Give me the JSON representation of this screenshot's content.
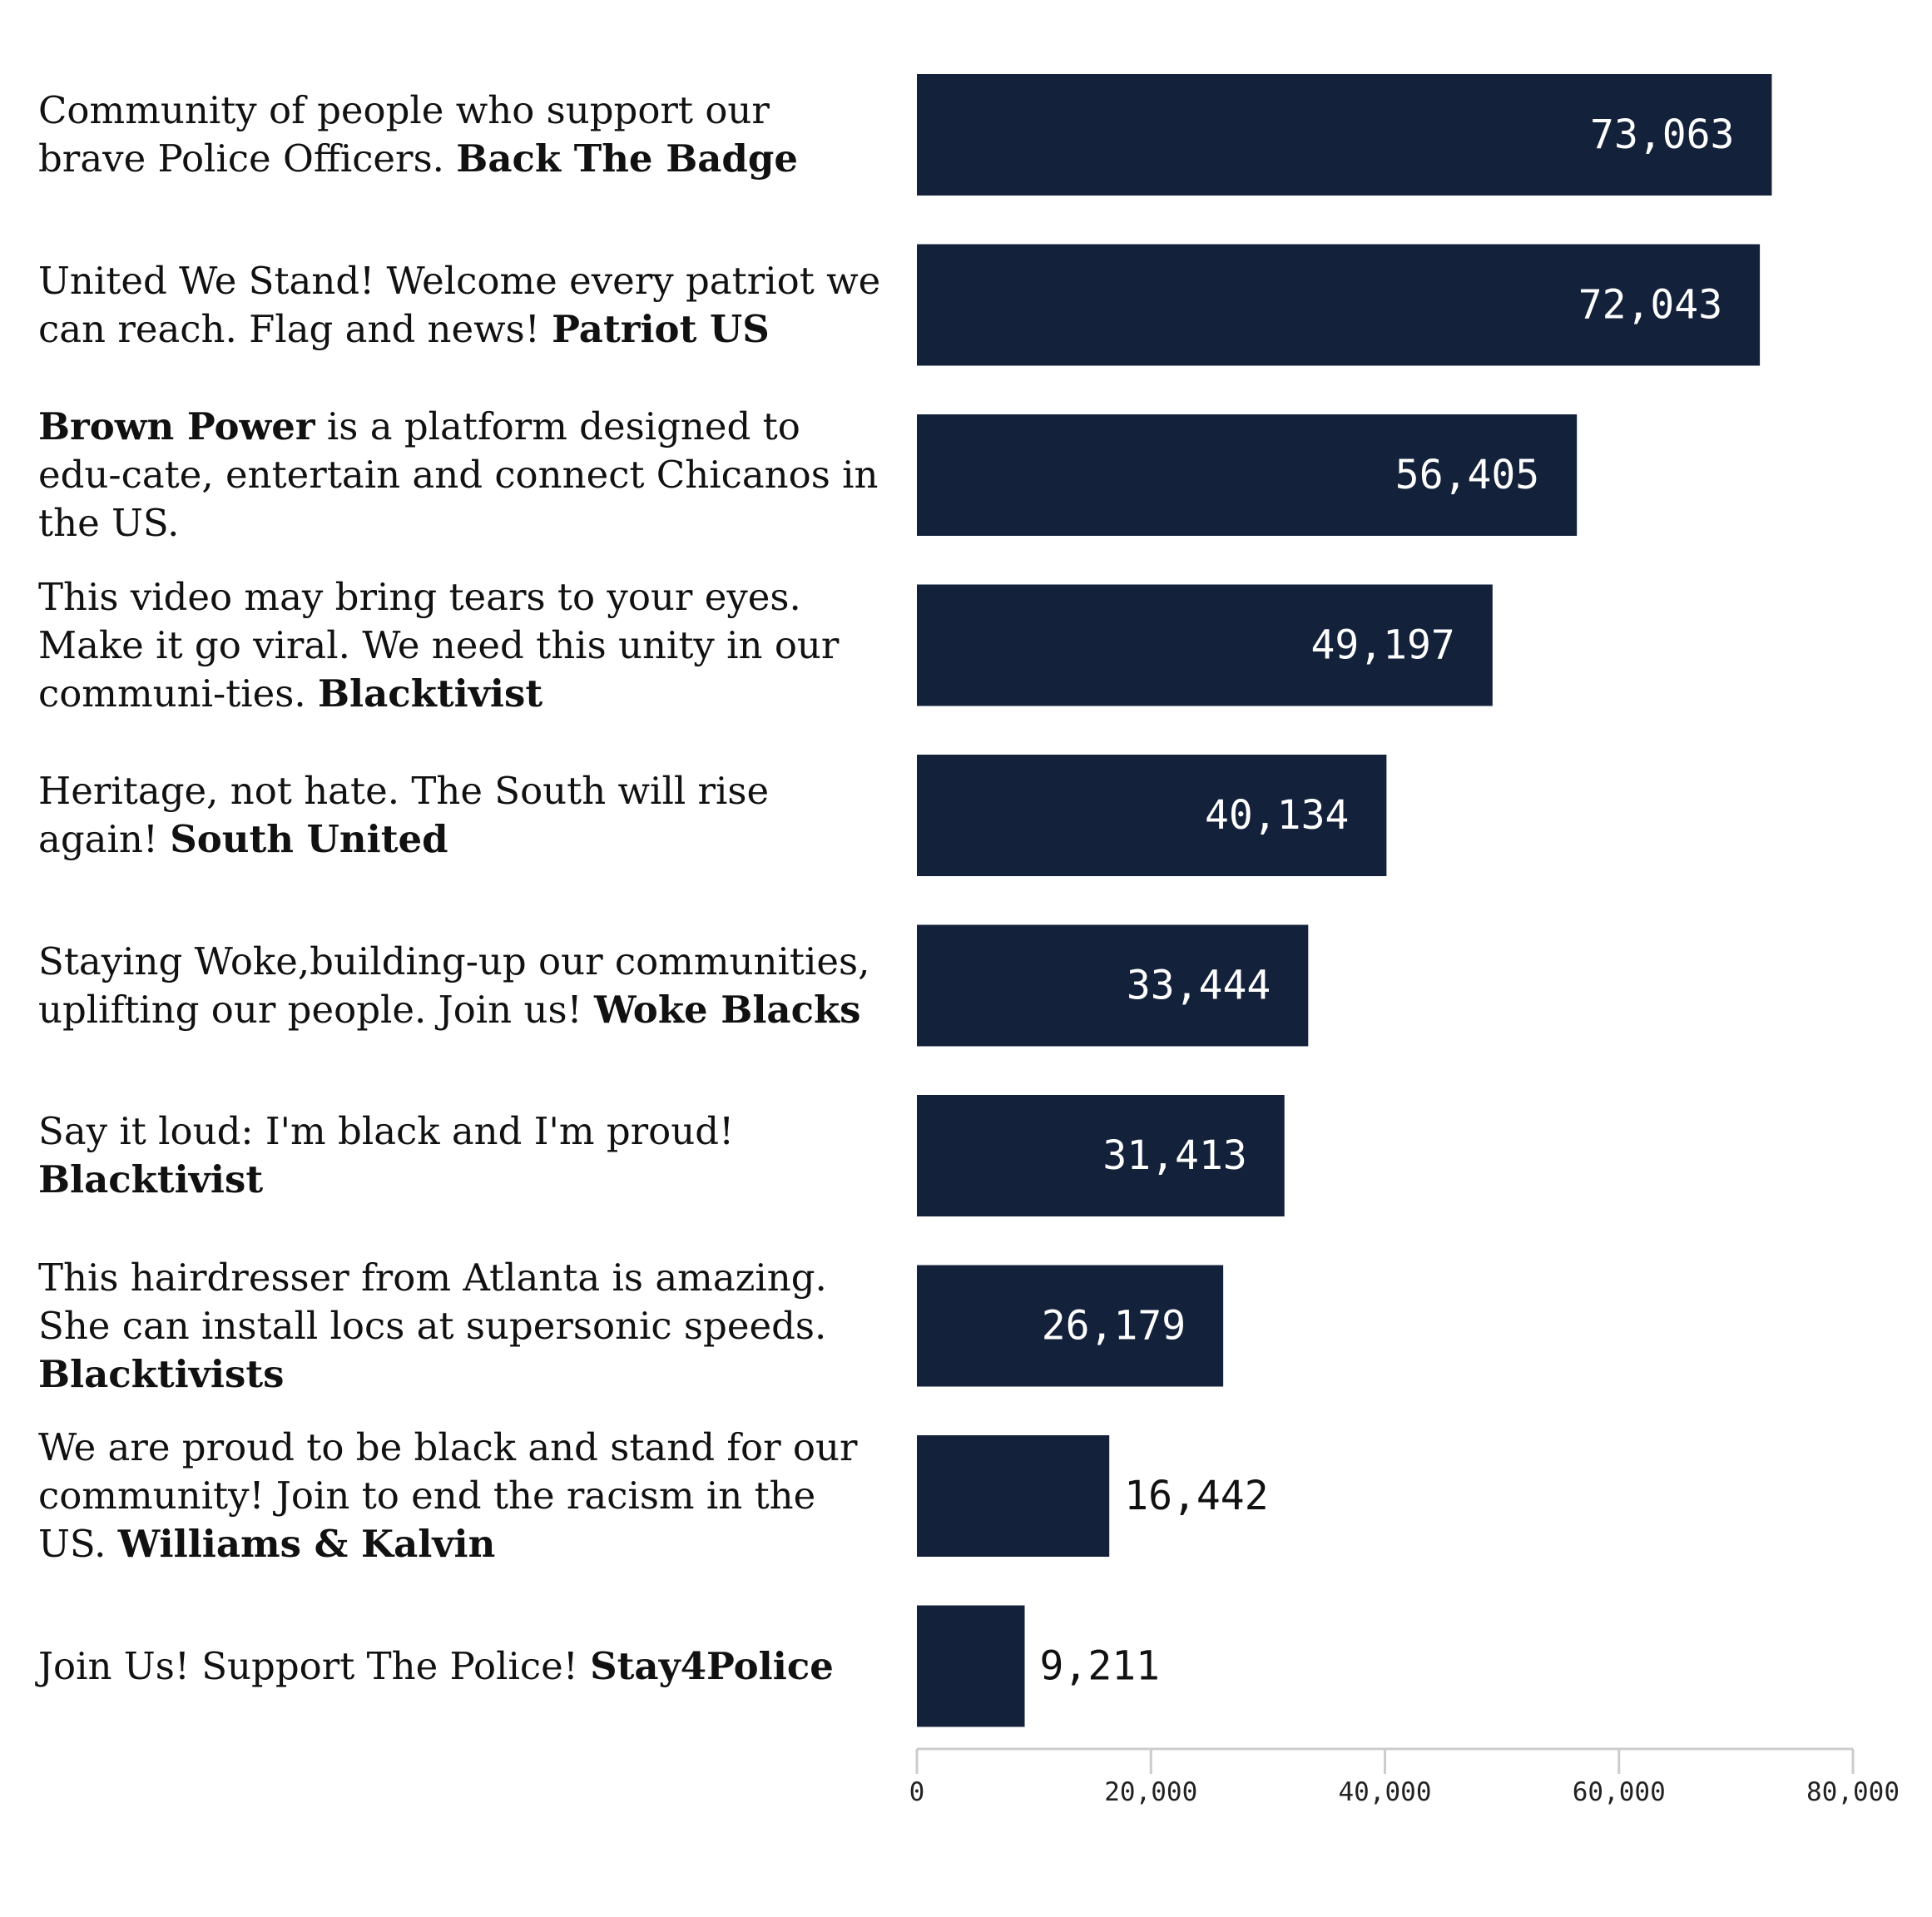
{
  "chart_data": {
    "type": "bar",
    "orientation": "horizontal",
    "xlim": [
      0,
      80000
    ],
    "ticks": [
      0,
      20000,
      40000,
      60000,
      80000
    ],
    "tick_labels": [
      "0",
      "20,000",
      "40,000",
      "60,000",
      "80,000"
    ],
    "grid": false,
    "bar_color": "#13213b",
    "categories": [
      {
        "text_before": "Community of people who support our brave Police Officers. ",
        "bold": "Back The Badge",
        "text_after": ""
      },
      {
        "text_before": "United We Stand! Welcome every patriot we can reach. Flag and news! ",
        "bold": "Patriot US",
        "text_after": ""
      },
      {
        "text_before": "",
        "bold": "Brown Power",
        "text_after": " is a platform designed to edu-cate, entertain and connect Chicanos in the US."
      },
      {
        "text_before": "This video may bring tears to your eyes. Make it go viral. We need this unity in our communi-ties. ",
        "bold": "Blacktivist",
        "text_after": ""
      },
      {
        "text_before": "Heritage, not hate. The South will rise again! ",
        "bold": "South United",
        "text_after": ""
      },
      {
        "text_before": "Staying Woke,building-up our communities, uplifting our people. Join us! ",
        "bold": "Woke Blacks",
        "text_after": ""
      },
      {
        "text_before": "Say it loud: I'm black and I'm proud! ",
        "bold": "Blacktivist",
        "text_after": ""
      },
      {
        "text_before": "This hairdresser from Atlanta is amazing. She can install locs at supersonic speeds. ",
        "bold": "Blacktivists",
        "text_after": ""
      },
      {
        "text_before": "We are proud to be black and stand for our community! Join to end the racism in the US. ",
        "bold": "Williams & Kalvin",
        "text_after": ""
      },
      {
        "text_before": "Join Us! Support The Police! ",
        "bold": "Stay4Police",
        "text_after": ""
      }
    ],
    "values": [
      73063,
      72043,
      56405,
      49197,
      40134,
      33444,
      31413,
      26179,
      16442,
      9211
    ],
    "value_labels": [
      "73,063",
      "72,043",
      "56,405",
      "49,197",
      "40,134",
      "33,444",
      "31,413",
      "26,179",
      "16,442",
      "9,211"
    ]
  }
}
